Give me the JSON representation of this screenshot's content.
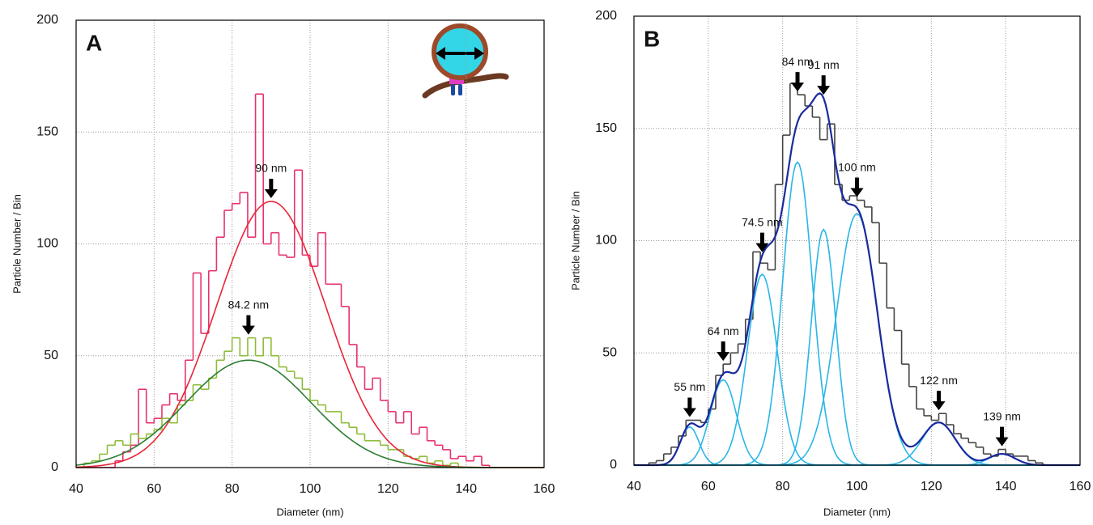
{
  "chart_data": [
    {
      "type": "histogram",
      "title": "A",
      "xlabel": "Diameter (nm)",
      "ylabel": "Particle Number / Bin",
      "xlim": [
        40,
        160
      ],
      "ylim": [
        0,
        200
      ],
      "xticks": [
        40,
        60,
        80,
        100,
        120,
        140,
        160
      ],
      "yticks": [
        0,
        50,
        100,
        150,
        200
      ],
      "grid": true,
      "series": [
        {
          "color": "#e8336d",
          "bins": [
            40,
            42,
            44,
            46,
            48,
            50,
            52,
            54,
            56,
            58,
            60,
            62,
            64,
            66,
            68,
            70,
            72,
            74,
            76,
            78,
            80,
            82,
            84,
            86,
            88,
            90,
            92,
            94,
            96,
            98,
            100,
            102,
            104,
            106,
            108,
            110,
            112,
            114,
            116,
            118,
            120,
            122,
            124,
            126,
            128,
            130,
            132,
            134,
            136,
            138,
            140,
            142,
            144,
            146,
            148,
            150,
            152,
            154,
            156,
            158,
            160
          ],
          "values": [
            0,
            0,
            0,
            0,
            0,
            3,
            7,
            10,
            35,
            20,
            22,
            28,
            33,
            30,
            48,
            87,
            60,
            88,
            103,
            115,
            118,
            123,
            103,
            167,
            100,
            105,
            95,
            94,
            133,
            95,
            90,
            105,
            82,
            82,
            72,
            55,
            45,
            35,
            40,
            30,
            25,
            20,
            25,
            15,
            18,
            12,
            10,
            8,
            4,
            5,
            3,
            5,
            1,
            0,
            0,
            0,
            0,
            0,
            0,
            0
          ]
        },
        {
          "color": "#8fbc3a",
          "bins": [
            40,
            42,
            44,
            46,
            48,
            50,
            52,
            54,
            56,
            58,
            60,
            62,
            64,
            66,
            68,
            70,
            72,
            74,
            76,
            78,
            80,
            82,
            84,
            86,
            88,
            90,
            92,
            94,
            96,
            98,
            100,
            102,
            104,
            106,
            108,
            110,
            112,
            114,
            116,
            118,
            120,
            122,
            124,
            126,
            128,
            130,
            132,
            134,
            136,
            138,
            140,
            142,
            144,
            146,
            148,
            150,
            152,
            154,
            156,
            158,
            160
          ],
          "values": [
            0,
            2,
            3,
            6,
            10,
            12,
            10,
            15,
            13,
            15,
            17,
            22,
            20,
            28,
            30,
            37,
            35,
            40,
            48,
            52,
            58,
            50,
            58,
            50,
            58,
            50,
            45,
            43,
            40,
            35,
            30,
            28,
            25,
            25,
            20,
            18,
            15,
            12,
            12,
            10,
            8,
            8,
            5,
            4,
            5,
            2,
            3,
            1,
            2,
            0,
            0,
            0,
            0,
            0,
            0,
            0,
            0,
            0,
            0,
            0
          ]
        }
      ],
      "fits": [
        {
          "color": "#e8253a",
          "center": 90,
          "height": 119,
          "sigma": 14,
          "label": "90 nm"
        },
        {
          "color": "#2e7d32",
          "center": 84.2,
          "height": 48,
          "sigma": 16,
          "label": "84.2 nm"
        }
      ]
    },
    {
      "type": "histogram",
      "title": "B",
      "xlabel": "Diameter (nm)",
      "ylabel": "Particle Number / Bin",
      "xlim": [
        40,
        160
      ],
      "ylim": [
        0,
        200
      ],
      "xticks": [
        40,
        60,
        80,
        100,
        120,
        140,
        160
      ],
      "yticks": [
        0,
        50,
        100,
        150,
        200
      ],
      "grid": true,
      "series": [
        {
          "color": "#444444",
          "bins": [
            44,
            46,
            48,
            50,
            52,
            54,
            56,
            58,
            60,
            62,
            64,
            66,
            68,
            70,
            72,
            74,
            76,
            78,
            80,
            82,
            84,
            86,
            88,
            90,
            92,
            94,
            96,
            98,
            100,
            102,
            104,
            106,
            108,
            110,
            112,
            114,
            116,
            118,
            120,
            122,
            124,
            126,
            128,
            130,
            132,
            134,
            136,
            138,
            140,
            142,
            144,
            146,
            148,
            150
          ],
          "values": [
            1,
            2,
            5,
            8,
            13,
            20,
            20,
            19,
            25,
            40,
            45,
            50,
            54,
            65,
            95,
            90,
            87,
            125,
            147,
            170,
            165,
            160,
            155,
            145,
            152,
            125,
            118,
            120,
            118,
            115,
            108,
            90,
            70,
            60,
            45,
            35,
            25,
            22,
            20,
            23,
            18,
            14,
            12,
            10,
            8,
            5,
            4,
            7,
            5,
            4,
            4,
            2,
            1
          ]
        }
      ],
      "fits": [
        {
          "color": "#29b6e6",
          "center": 55,
          "height": 17,
          "sigma": 2.5,
          "label": "55 nm"
        },
        {
          "color": "#29b6e6",
          "center": 64,
          "height": 38,
          "sigma": 3.5,
          "label": "64 nm"
        },
        {
          "color": "#29b6e6",
          "center": 74.5,
          "height": 85,
          "sigma": 4,
          "label": "74.5 nm"
        },
        {
          "color": "#29b6e6",
          "center": 84,
          "height": 135,
          "sigma": 4,
          "label": "84 nm"
        },
        {
          "color": "#29b6e6",
          "center": 91,
          "height": 105,
          "sigma": 3.3,
          "label": "91 nm"
        },
        {
          "color": "#29b6e6",
          "center": 100,
          "height": 112,
          "sigma": 5.5,
          "label": "100 nm"
        },
        {
          "color": "#29b6e6",
          "center": 122,
          "height": 19,
          "sigma": 4.5,
          "label": "122 nm"
        },
        {
          "color": "#29b6e6",
          "center": 139,
          "height": 5,
          "sigma": 3.5,
          "label": "139 nm"
        }
      ],
      "sum_color": "#1a2a9e"
    }
  ]
}
